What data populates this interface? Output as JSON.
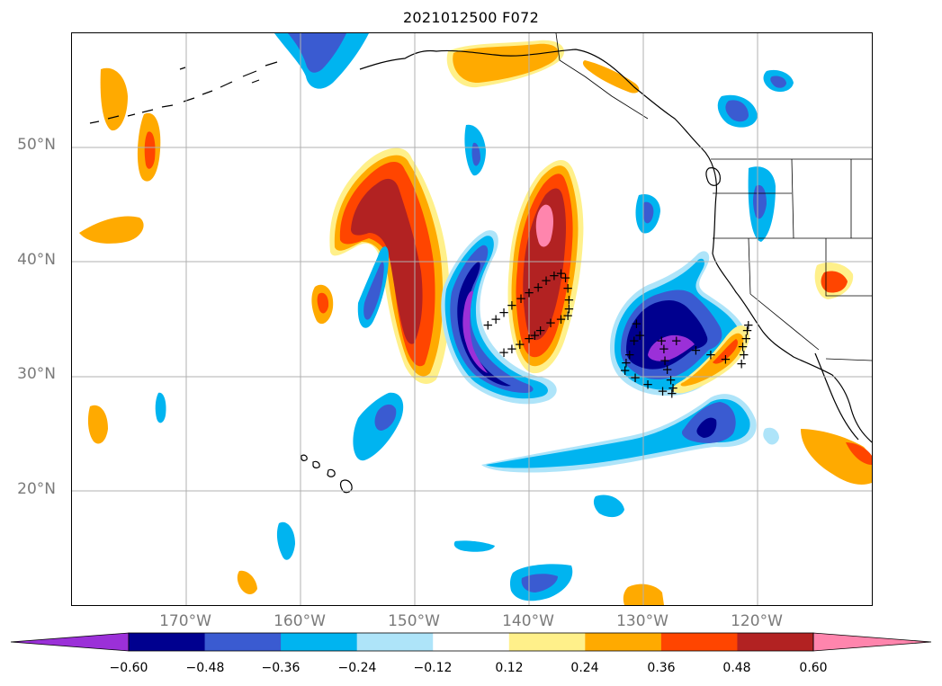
{
  "title": "2021012500 F072",
  "map": {
    "lat_labels": [
      "50°N",
      "40°N",
      "30°N",
      "20°N"
    ],
    "lon_labels": [
      "170°W",
      "160°W",
      "150°W",
      "140°W",
      "130°W",
      "120°W"
    ],
    "observation_marker": "+",
    "observation_points": [
      [
        -143.6,
        34.5
      ],
      [
        -142.9,
        35.0
      ],
      [
        -142.2,
        35.6
      ],
      [
        -141.5,
        36.2
      ],
      [
        -140.7,
        36.8
      ],
      [
        -140.0,
        37.3
      ],
      [
        -139.2,
        37.8
      ],
      [
        -138.5,
        38.4
      ],
      [
        -137.8,
        38.8
      ],
      [
        -137.2,
        39.0
      ],
      [
        -136.8,
        38.6
      ],
      [
        -136.6,
        37.7
      ],
      [
        -136.5,
        36.7
      ],
      [
        -136.5,
        35.9
      ],
      [
        -136.6,
        35.3
      ],
      [
        -137.2,
        35.0
      ],
      [
        -138.1,
        34.7
      ],
      [
        -139.0,
        34.0
      ],
      [
        -139.5,
        33.6
      ],
      [
        -140.0,
        33.3
      ],
      [
        -140.8,
        32.8
      ],
      [
        -141.5,
        32.4
      ],
      [
        -142.2,
        32.1
      ],
      [
        -130.6,
        34.6
      ],
      [
        -130.3,
        33.6
      ],
      [
        -130.8,
        33.1
      ],
      [
        -131.2,
        31.9
      ],
      [
        -131.5,
        31.2
      ],
      [
        -131.6,
        30.5
      ],
      [
        -130.7,
        29.9
      ],
      [
        -129.6,
        29.3
      ],
      [
        -128.3,
        28.7
      ],
      [
        -127.5,
        28.5
      ],
      [
        -127.4,
        29.0
      ],
      [
        -127.6,
        29.7
      ],
      [
        -127.9,
        30.6
      ],
      [
        -128.1,
        31.4
      ],
      [
        -128.2,
        32.4
      ],
      [
        -128.4,
        33.1
      ],
      [
        -127.1,
        33.1
      ],
      [
        -125.4,
        32.3
      ],
      [
        -124.1,
        31.9
      ],
      [
        -122.8,
        31.5
      ],
      [
        -121.4,
        31.1
      ],
      [
        -121.2,
        31.9
      ],
      [
        -121.3,
        32.6
      ],
      [
        -121.0,
        33.3
      ],
      [
        -120.9,
        34.0
      ],
      [
        -120.8,
        34.5
      ]
    ]
  },
  "colorbar": {
    "tick_labels": [
      "−0.60",
      "−0.48",
      "−0.36",
      "−0.24",
      "−0.12",
      "0.12",
      "0.24",
      "0.36",
      "0.48",
      "0.60"
    ],
    "colors": [
      "#9b30d8",
      "#00008f",
      "#3a5bd1",
      "#00b4f0",
      "#aee4f9",
      "#ffffff",
      "#fff08a",
      "#ffaa00",
      "#ff4500",
      "#b22222",
      "#ff85ad"
    ],
    "extend": "both"
  },
  "palette": {
    "purple": "#9b30d8",
    "navy": "#00008f",
    "blue": "#3a5bd1",
    "sky": "#00b4f0",
    "pale_blue": "#aee4f9",
    "pale_yellow": "#fff08a",
    "orange": "#ffaa00",
    "red_orange": "#ff4500",
    "dark_red": "#b22222",
    "pink": "#ff85ad",
    "grid": "#b0b0b0",
    "coast": "#000000"
  }
}
